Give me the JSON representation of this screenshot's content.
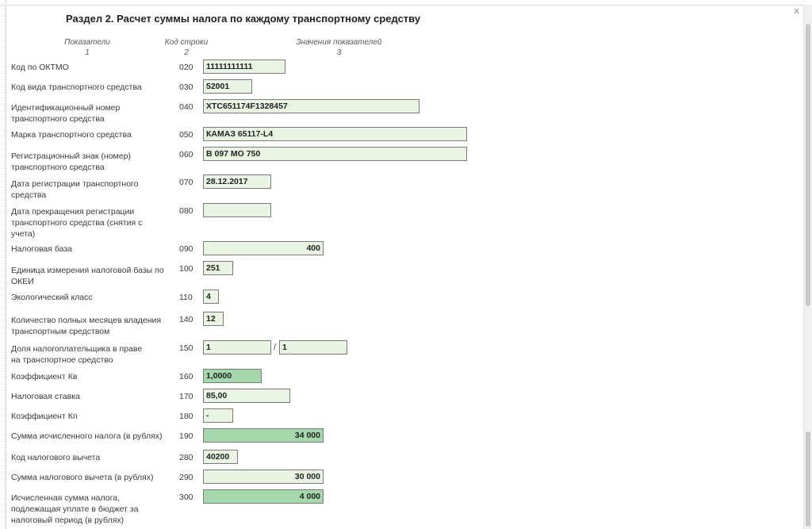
{
  "title": "Раздел 2. Расчет суммы налога по каждому транспортному средству",
  "headers": {
    "col1": {
      "label": "Показатели",
      "num": "1"
    },
    "col2": {
      "label": "Код строки",
      "num": "2"
    },
    "col3": {
      "label": "Значения показателей",
      "num": "3"
    }
  },
  "rows": {
    "oktmo": {
      "label": "Код по ОКТМО",
      "code": "020",
      "value": "11111111111"
    },
    "vehicle_type": {
      "label": "Код вида транспортного средства",
      "code": "030",
      "value": "52001"
    },
    "vin": {
      "label": "Идентификационный номер транспортного средства",
      "code": "040",
      "value": "XTC651174F1328457"
    },
    "brand": {
      "label": "Марка транспортного средства",
      "code": "050",
      "value": "КАМАЗ 65117-L4"
    },
    "reg_sign": {
      "label": "Регистрационный знак (номер) транспортного средства",
      "code": "060",
      "value": "В 097 МО 750"
    },
    "reg_date": {
      "label": "Дата регистрации транспортного средства",
      "code": "070",
      "value": "28.12.2017"
    },
    "dereg_date": {
      "label": "Дата прекращения регистрации транспортного средства (снятия с учета)",
      "code": "080",
      "value": ""
    },
    "tax_base": {
      "label": "Налоговая база",
      "code": "090",
      "value": "400"
    },
    "okei": {
      "label": "Единица измерения налоговой базы по ОКЕИ",
      "code": "100",
      "value": "251"
    },
    "eco_class": {
      "label": "Экологический класс",
      "code": "110",
      "value": "4"
    },
    "months": {
      "label": "Количество полных месяцев владения транспортным средством",
      "code": "140",
      "value": "12"
    },
    "share": {
      "label": "Доля налогоплательщика в праве на транспортное средство",
      "code": "150",
      "numerator": "1",
      "separator": "/",
      "denominator": "1"
    },
    "kv": {
      "label": "Коэффициент Кв",
      "code": "160",
      "value": "1,0000"
    },
    "rate": {
      "label": "Налоговая ставка",
      "code": "170",
      "value": "85,00"
    },
    "kp": {
      "label": "Коэффициент Кп",
      "code": "180",
      "value": "-"
    },
    "tax_calc": {
      "label": "Сумма исчисленного налога (в рублях)",
      "code": "190",
      "value": "34 000"
    },
    "deduction_code": {
      "label": "Код налогового вычета",
      "code": "280",
      "value": "40200"
    },
    "deduction_sum": {
      "label": "Сумма налогового вычета (в рублях)",
      "code": "290",
      "value": "30 000"
    },
    "tax_payable": {
      "label": "Исчисленная сумма налога, подлежащая уплате в бюджет за налоговый период (в рублях)",
      "code": "300",
      "value": "4 000"
    }
  },
  "icons": {
    "close": "close-icon"
  },
  "colors": {
    "field_bg": "#e9f4e3",
    "calc_field_bg": "#a6d8ae",
    "field_border": "#7a7a7a"
  }
}
